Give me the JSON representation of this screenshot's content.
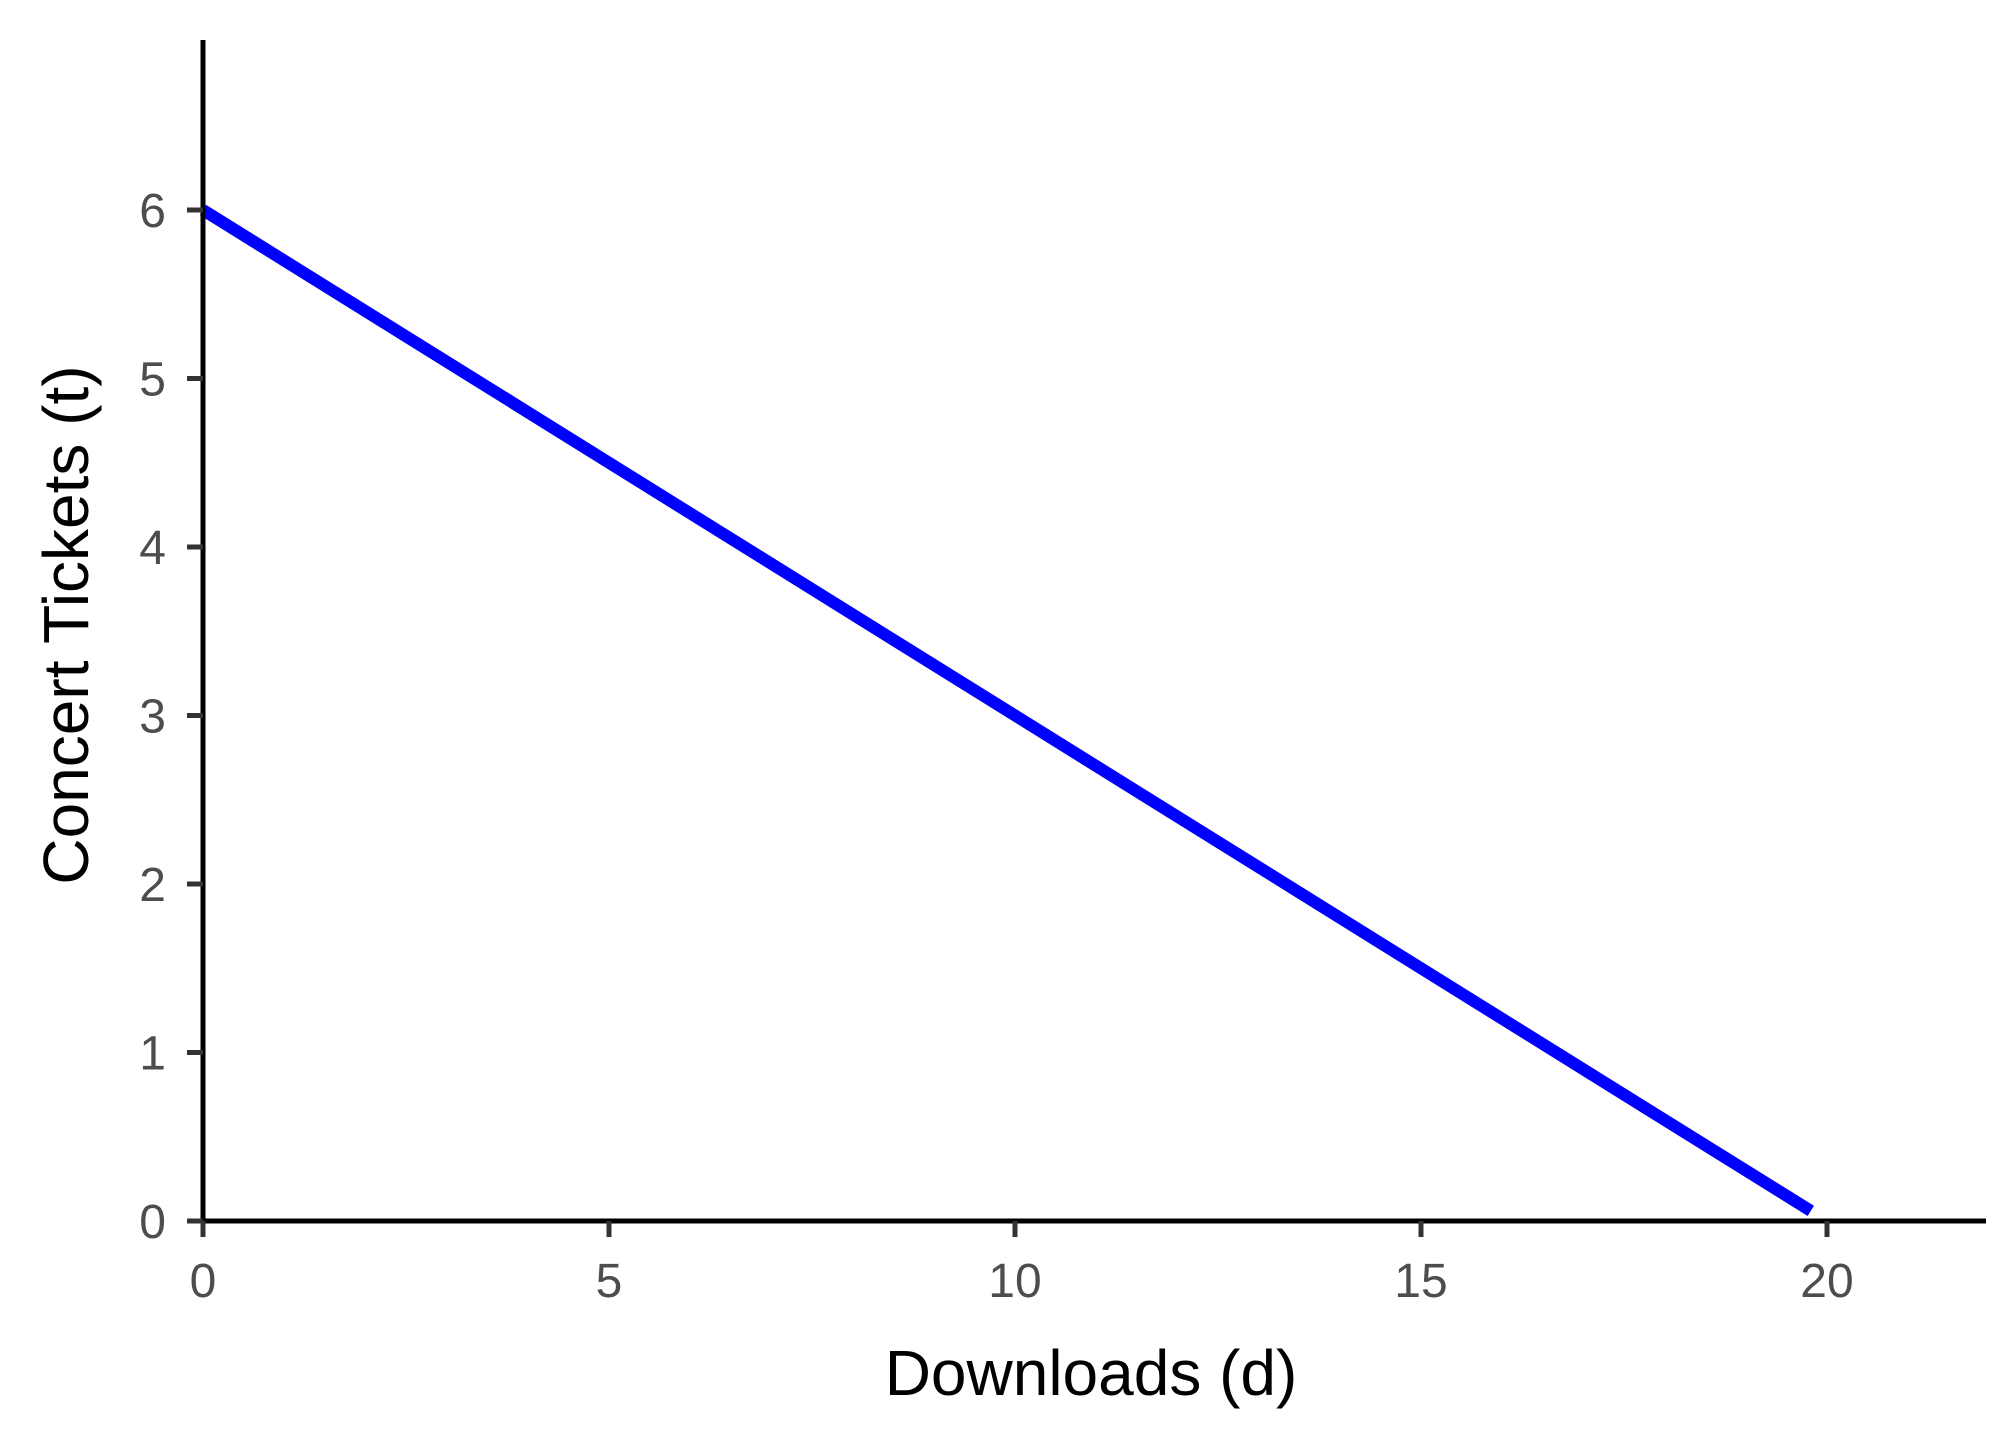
{
  "chart_data": {
    "type": "line",
    "title": "",
    "xlabel": "Downloads (d)",
    "ylabel": "Concert Tickets (t)",
    "xlim": [
      0,
      22
    ],
    "ylim": [
      0,
      7
    ],
    "x_ticks": [
      "0",
      "5",
      "10",
      "15",
      "20"
    ],
    "y_ticks": [
      "0",
      "1",
      "2",
      "3",
      "4",
      "5",
      "6"
    ],
    "grid": false,
    "legend": "none",
    "series": [
      {
        "color": "#0000ff",
        "x": [
          0,
          19.8
        ],
        "y": [
          6,
          0.06
        ]
      }
    ]
  }
}
